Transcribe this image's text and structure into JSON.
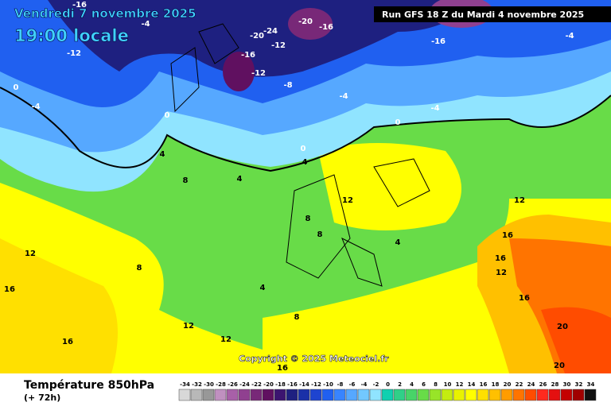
{
  "header": {
    "date": "Vendredi 7 novembre 2025",
    "time": "19:00 locale",
    "run": "Run GFS 18 Z du Mardi 4 novembre 2025"
  },
  "copyright": "Copyright © 2025 Meteociel.fr",
  "footer": {
    "title": "Température 850hPa",
    "lead": "(+ 72h)"
  },
  "contour_labels": [
    -16,
    -16,
    -16,
    -16,
    -20,
    -20,
    -24,
    -12,
    -12,
    -12,
    -8,
    -4,
    -4,
    -4,
    -4,
    -4,
    0,
    0,
    0,
    0,
    4,
    4,
    4,
    4,
    8,
    8,
    8,
    8,
    12,
    12,
    12,
    12,
    12,
    16,
    16,
    16,
    16,
    16,
    20,
    20,
    16,
    8,
    4,
    12
  ],
  "legend": {
    "labels": [
      -34,
      -32,
      -30,
      -28,
      -26,
      -24,
      -22,
      -20,
      -18,
      -16,
      -14,
      -12,
      -10,
      -8,
      -6,
      -4,
      -2,
      0,
      2,
      4,
      6,
      8,
      10,
      12,
      14,
      16,
      18,
      20,
      22,
      24,
      26,
      28,
      30,
      32,
      34
    ],
    "colors": [
      "#d8d8d8",
      "#b8b8b8",
      "#989898",
      "#c090c0",
      "#a860a8",
      "#904090",
      "#782878",
      "#601060",
      "#3c1470",
      "#1e2080",
      "#1a30a8",
      "#1e44d0",
      "#2060f0",
      "#3884ff",
      "#56a8ff",
      "#72c8ff",
      "#90e4ff",
      "#10d0b0",
      "#30d088",
      "#48d468",
      "#68dc48",
      "#98e428",
      "#c4ec10",
      "#e8f200",
      "#ffff00",
      "#ffe000",
      "#ffc000",
      "#ff9c00",
      "#ff7400",
      "#ff4c00",
      "#ff2a1e",
      "#e41010",
      "#c40000",
      "#a00000",
      "#101010"
    ]
  }
}
